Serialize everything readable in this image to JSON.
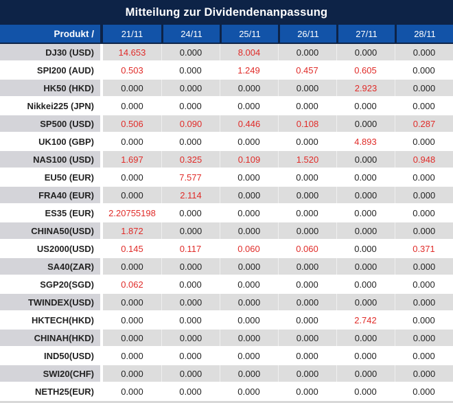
{
  "title": "Mitteilung zur Dividendenanpassung",
  "table": {
    "product_header": "Produkt /",
    "date_columns": [
      "21/11",
      "24/11",
      "25/11",
      "26/11",
      "27/11",
      "28/11"
    ],
    "rows": [
      {
        "product": "DJ30 (USD)",
        "values": [
          "14.653",
          "0.000",
          "8.004",
          "0.000",
          "0.000",
          "0.000"
        ],
        "red": [
          true,
          false,
          true,
          false,
          false,
          false
        ]
      },
      {
        "product": "SPI200 (AUD)",
        "values": [
          "0.503",
          "0.000",
          "1.249",
          "0.457",
          "0.605",
          "0.000"
        ],
        "red": [
          true,
          false,
          true,
          true,
          true,
          false
        ]
      },
      {
        "product": "HK50 (HKD)",
        "values": [
          "0.000",
          "0.000",
          "0.000",
          "0.000",
          "2.923",
          "0.000"
        ],
        "red": [
          false,
          false,
          false,
          false,
          true,
          false
        ]
      },
      {
        "product": "Nikkei225 (JPN)",
        "values": [
          "0.000",
          "0.000",
          "0.000",
          "0.000",
          "0.000",
          "0.000"
        ],
        "red": [
          false,
          false,
          false,
          false,
          false,
          false
        ]
      },
      {
        "product": "SP500 (USD)",
        "values": [
          "0.506",
          "0.090",
          "0.446",
          "0.108",
          "0.000",
          "0.287"
        ],
        "red": [
          true,
          true,
          true,
          true,
          false,
          true
        ]
      },
      {
        "product": "UK100 (GBP)",
        "values": [
          "0.000",
          "0.000",
          "0.000",
          "0.000",
          "4.893",
          "0.000"
        ],
        "red": [
          false,
          false,
          false,
          false,
          true,
          false
        ]
      },
      {
        "product": "NAS100 (USD)",
        "values": [
          "1.697",
          "0.325",
          "0.109",
          "1.520",
          "0.000",
          "0.948"
        ],
        "red": [
          true,
          true,
          true,
          true,
          false,
          true
        ]
      },
      {
        "product": "EU50 (EUR)",
        "values": [
          "0.000",
          "7.577",
          "0.000",
          "0.000",
          "0.000",
          "0.000"
        ],
        "red": [
          false,
          true,
          false,
          false,
          false,
          false
        ]
      },
      {
        "product": "FRA40 (EUR)",
        "values": [
          "0.000",
          "2.114",
          "0.000",
          "0.000",
          "0.000",
          "0.000"
        ],
        "red": [
          false,
          true,
          false,
          false,
          false,
          false
        ]
      },
      {
        "product": "ES35 (EUR)",
        "values": [
          "2.20755198",
          "0.000",
          "0.000",
          "0.000",
          "0.000",
          "0.000"
        ],
        "red": [
          true,
          false,
          false,
          false,
          false,
          false
        ]
      },
      {
        "product": "CHINA50(USD)",
        "values": [
          "1.872",
          "0.000",
          "0.000",
          "0.000",
          "0.000",
          "0.000"
        ],
        "red": [
          true,
          false,
          false,
          false,
          false,
          false
        ]
      },
      {
        "product": "US2000(USD)",
        "values": [
          "0.145",
          "0.117",
          "0.060",
          "0.060",
          "0.000",
          "0.371"
        ],
        "red": [
          true,
          true,
          true,
          true,
          false,
          true
        ]
      },
      {
        "product": "SA40(ZAR)",
        "values": [
          "0.000",
          "0.000",
          "0.000",
          "0.000",
          "0.000",
          "0.000"
        ],
        "red": [
          false,
          false,
          false,
          false,
          false,
          false
        ]
      },
      {
        "product": "SGP20(SGD)",
        "values": [
          "0.062",
          "0.000",
          "0.000",
          "0.000",
          "0.000",
          "0.000"
        ],
        "red": [
          true,
          false,
          false,
          false,
          false,
          false
        ]
      },
      {
        "product": "TWINDEX(USD)",
        "values": [
          "0.000",
          "0.000",
          "0.000",
          "0.000",
          "0.000",
          "0.000"
        ],
        "red": [
          false,
          false,
          false,
          false,
          false,
          false
        ]
      },
      {
        "product": "HKTECH(HKD)",
        "values": [
          "0.000",
          "0.000",
          "0.000",
          "0.000",
          "2.742",
          "0.000"
        ],
        "red": [
          false,
          false,
          false,
          false,
          true,
          false
        ]
      },
      {
        "product": "CHINAH(HKD)",
        "values": [
          "0.000",
          "0.000",
          "0.000",
          "0.000",
          "0.000",
          "0.000"
        ],
        "red": [
          false,
          false,
          false,
          false,
          false,
          false
        ]
      },
      {
        "product": "IND50(USD)",
        "values": [
          "0.000",
          "0.000",
          "0.000",
          "0.000",
          "0.000",
          "0.000"
        ],
        "red": [
          false,
          false,
          false,
          false,
          false,
          false
        ]
      },
      {
        "product": "SWI20(CHF)",
        "values": [
          "0.000",
          "0.000",
          "0.000",
          "0.000",
          "0.000",
          "0.000"
        ],
        "red": [
          false,
          false,
          false,
          false,
          false,
          false
        ]
      },
      {
        "product": "NETH25(EUR)",
        "values": [
          "0.000",
          "0.000",
          "0.000",
          "0.000",
          "0.000",
          "0.000"
        ],
        "red": [
          false,
          false,
          false,
          false,
          false,
          false
        ]
      }
    ]
  },
  "colors": {
    "navy": "#0d2347",
    "blue": "#1253a8",
    "red": "#e02b28",
    "ink": "#222222",
    "gray_product": "#d4d4d9",
    "gray_value": "#dddddd",
    "bottom_strip": "#d8d8d8"
  }
}
